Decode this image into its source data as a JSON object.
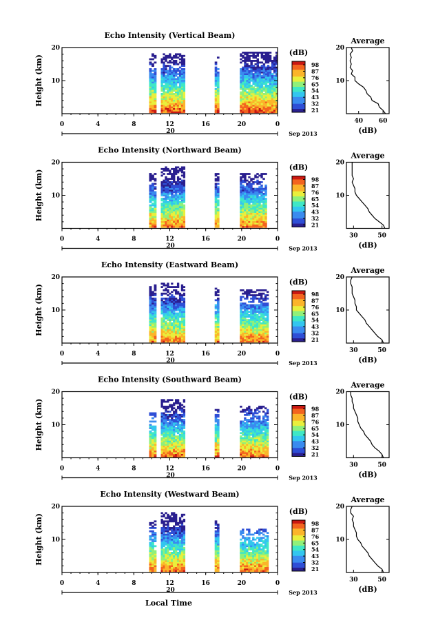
{
  "figure": {
    "xlabel": "Local Time",
    "date_label": "Sep 2013",
    "colorbar_unit": "(dB)",
    "colorbar_ticks": [
      "98",
      "87",
      "76",
      "65",
      "54",
      "43",
      "32",
      "21"
    ],
    "average_title": "Average",
    "average_xlabel": "(dB)"
  },
  "colors": {
    "colormap": [
      "#2a1f8f",
      "#2f4fd6",
      "#3a8bef",
      "#33c6ef",
      "#3fe7c6",
      "#8ff07a",
      "#e9ef3c",
      "#fbb52a",
      "#f3641f",
      "#c91812"
    ]
  },
  "chart_data": [
    {
      "type": "heatmap",
      "title": "Echo Intensity (Vertical Beam)",
      "ylabel": "Height (km)",
      "xlim": [
        0,
        24
      ],
      "ylim": [
        0,
        20
      ],
      "xticks": [
        "0",
        "4",
        "8",
        "12",
        "16",
        "20",
        "0"
      ],
      "yticks": [
        "10",
        "20"
      ],
      "day_tick": "20",
      "colorbar_range": [
        21,
        98
      ],
      "data_blocks": [
        {
          "t_start": 9.7,
          "t_end": 10.5,
          "h_max": 18.5
        },
        {
          "t_start": 11.0,
          "t_end": 13.7,
          "h_max": 18.5
        },
        {
          "t_start": 17.0,
          "t_end": 17.5,
          "h_max": 17.5
        },
        {
          "t_start": 19.8,
          "t_end": 24.0,
          "h_max": 19.0
        }
      ],
      "average_profile": {
        "xticks": [
          "40",
          "60"
        ],
        "xlim": [
          30,
          65
        ],
        "heights": [
          0,
          1,
          2,
          3,
          4,
          5,
          6,
          7,
          8,
          9,
          10,
          11,
          12,
          13,
          14,
          15,
          16,
          17,
          18,
          19,
          20
        ],
        "values": [
          62,
          60,
          57,
          56,
          51,
          50,
          47,
          46,
          44,
          40,
          37,
          37,
          34,
          35,
          33,
          34,
          33,
          34,
          33,
          35,
          34
        ]
      }
    },
    {
      "type": "heatmap",
      "title": "Echo Intensity (Northward Beam)",
      "ylabel": "Height (km)",
      "xlim": [
        0,
        24
      ],
      "ylim": [
        0,
        20
      ],
      "xticks": [
        "0",
        "4",
        "8",
        "12",
        "16",
        "20",
        "0"
      ],
      "yticks": [
        "10",
        "20"
      ],
      "day_tick": "20",
      "colorbar_range": [
        21,
        98
      ],
      "data_blocks": [
        {
          "t_start": 9.7,
          "t_end": 10.5,
          "h_max": 17.0
        },
        {
          "t_start": 11.0,
          "t_end": 13.7,
          "h_max": 19.0
        },
        {
          "t_start": 17.0,
          "t_end": 17.5,
          "h_max": 17.5
        },
        {
          "t_start": 19.8,
          "t_end": 22.8,
          "h_max": 17.0
        }
      ],
      "average_profile": {
        "xticks": [
          "30",
          "50"
        ],
        "xlim": [
          25,
          55
        ],
        "heights": [
          0,
          1,
          2,
          3,
          4,
          5,
          6,
          7,
          8,
          9,
          10,
          11,
          12,
          13,
          14,
          15,
          16,
          17,
          18,
          19,
          20
        ],
        "values": [
          52,
          51,
          48,
          45,
          43,
          41,
          40,
          38,
          36,
          34,
          32,
          31,
          31,
          30,
          29,
          30,
          29,
          29,
          29,
          29,
          29
        ]
      }
    },
    {
      "type": "heatmap",
      "title": "Echo Intensity (Eastward Beam)",
      "ylabel": "Height (km)",
      "xlim": [
        0,
        24
      ],
      "ylim": [
        0,
        20
      ],
      "xticks": [
        "0",
        "4",
        "8",
        "12",
        "16",
        "20",
        "0"
      ],
      "yticks": [
        "10",
        "20"
      ],
      "day_tick": "20",
      "colorbar_range": [
        21,
        98
      ],
      "data_blocks": [
        {
          "t_start": 9.7,
          "t_end": 10.5,
          "h_max": 18.0
        },
        {
          "t_start": 11.0,
          "t_end": 13.7,
          "h_max": 18.5
        },
        {
          "t_start": 17.0,
          "t_end": 17.5,
          "h_max": 17.0
        },
        {
          "t_start": 19.8,
          "t_end": 23.0,
          "h_max": 16.5
        }
      ],
      "average_profile": {
        "xticks": [
          "30",
          "50"
        ],
        "xlim": [
          25,
          55
        ],
        "heights": [
          0,
          1,
          2,
          3,
          4,
          5,
          6,
          7,
          8,
          9,
          10,
          11,
          12,
          13,
          14,
          15,
          16,
          17,
          18,
          19,
          20
        ],
        "values": [
          51,
          50,
          47,
          45,
          43,
          41,
          39,
          38,
          36,
          34,
          32,
          32,
          31,
          31,
          30,
          29,
          29,
          29,
          28,
          28,
          29
        ]
      }
    },
    {
      "type": "heatmap",
      "title": "Echo Intensity (Southward Beam)",
      "ylabel": "Height (km)",
      "xlim": [
        0,
        24
      ],
      "ylim": [
        0,
        20
      ],
      "xticks": [
        "0",
        "4",
        "8",
        "12",
        "16",
        "20",
        "0"
      ],
      "yticks": [
        "10",
        "20"
      ],
      "day_tick": "20",
      "colorbar_range": [
        21,
        98
      ],
      "data_blocks": [
        {
          "t_start": 9.7,
          "t_end": 10.5,
          "h_max": 14.0
        },
        {
          "t_start": 11.0,
          "t_end": 13.7,
          "h_max": 18.0
        },
        {
          "t_start": 17.0,
          "t_end": 17.5,
          "h_max": 16.0
        },
        {
          "t_start": 19.8,
          "t_end": 23.0,
          "h_max": 16.0
        }
      ],
      "average_profile": {
        "xticks": [
          "30",
          "50"
        ],
        "xlim": [
          25,
          55
        ],
        "heights": [
          0,
          1,
          2,
          3,
          4,
          5,
          6,
          7,
          8,
          9,
          10,
          11,
          12,
          13,
          14,
          15,
          16,
          17,
          18,
          19,
          20
        ],
        "values": [
          51,
          50,
          48,
          45,
          43,
          42,
          40,
          38,
          37,
          35,
          34,
          33,
          33,
          32,
          31,
          30,
          30,
          29,
          29,
          28,
          28
        ]
      }
    },
    {
      "type": "heatmap",
      "title": "Echo Intensity (Westward Beam)",
      "ylabel": "Height (km)",
      "xlim": [
        0,
        24
      ],
      "ylim": [
        0,
        20
      ],
      "xticks": [
        "0",
        "4",
        "8",
        "12",
        "16",
        "20",
        "0"
      ],
      "yticks": [
        "10",
        "20"
      ],
      "day_tick": "20",
      "colorbar_range": [
        21,
        98
      ],
      "data_blocks": [
        {
          "t_start": 9.7,
          "t_end": 10.5,
          "h_max": 16.0
        },
        {
          "t_start": 11.0,
          "t_end": 13.7,
          "h_max": 18.5
        },
        {
          "t_start": 17.0,
          "t_end": 17.5,
          "h_max": 16.5
        },
        {
          "t_start": 19.8,
          "t_end": 23.0,
          "h_max": 13.5
        }
      ],
      "average_profile": {
        "xticks": [
          "30",
          "50"
        ],
        "xlim": [
          25,
          55
        ],
        "heights": [
          0,
          1,
          2,
          3,
          4,
          5,
          6,
          7,
          8,
          9,
          10,
          11,
          12,
          13,
          14,
          15,
          16,
          17,
          18,
          19,
          20
        ],
        "values": [
          51,
          50,
          47,
          45,
          43,
          41,
          40,
          38,
          36,
          35,
          33,
          32,
          32,
          31,
          30,
          30,
          29,
          30,
          28,
          28,
          29
        ]
      }
    }
  ]
}
